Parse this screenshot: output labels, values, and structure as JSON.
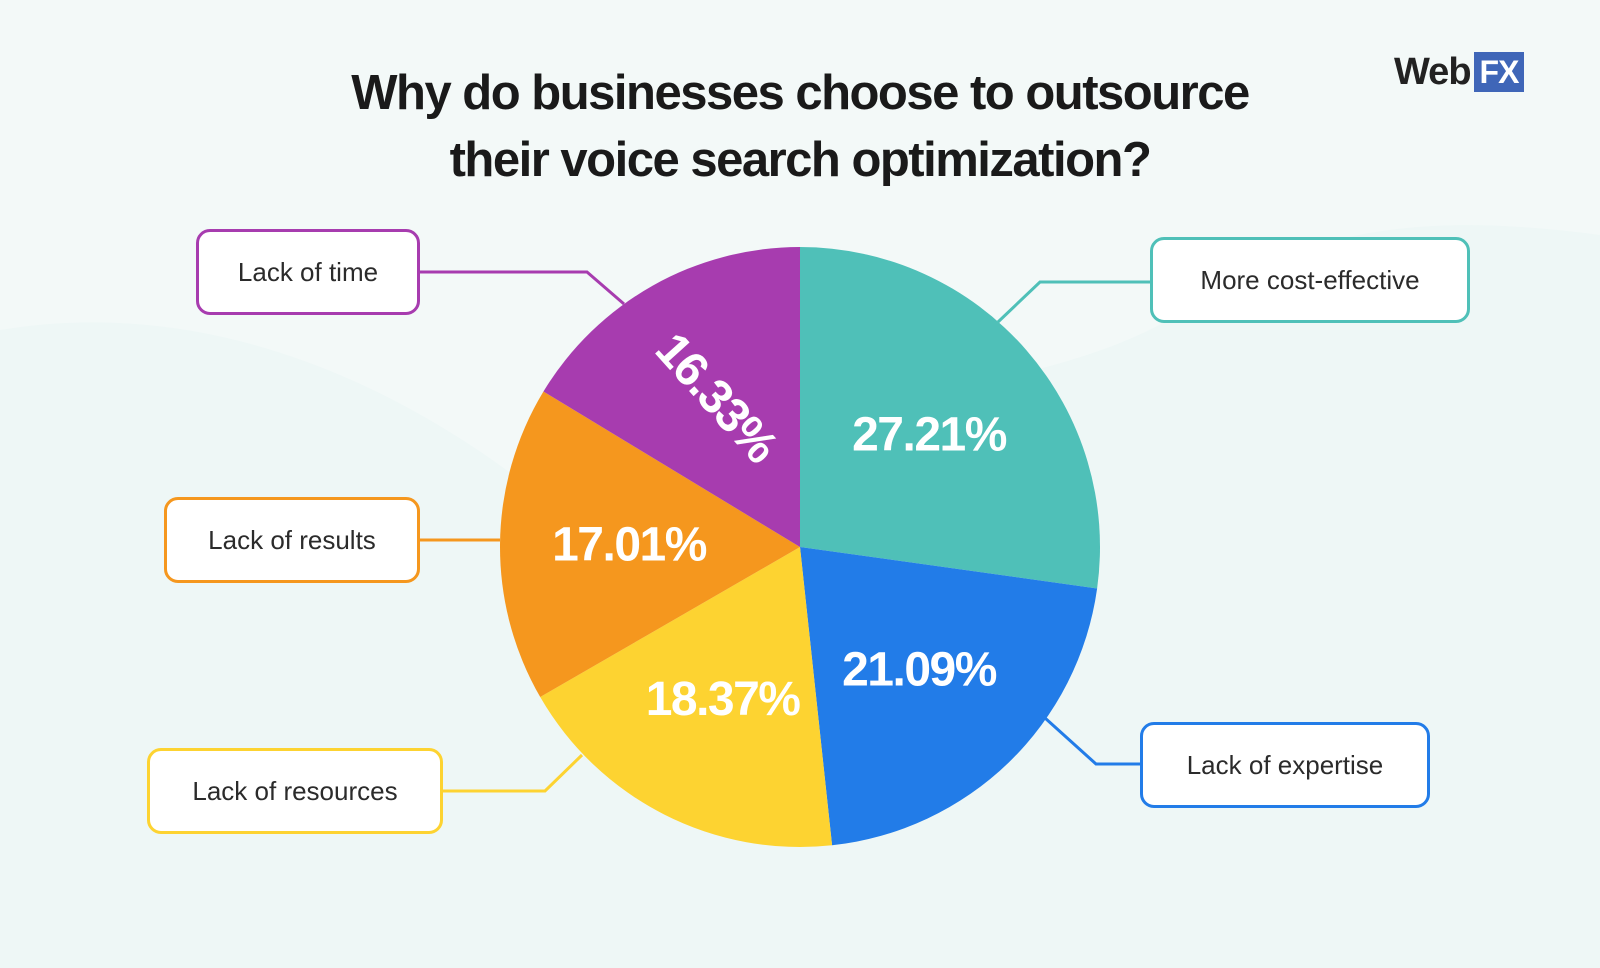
{
  "title_lines": [
    "Why do businesses choose to outsource",
    "their voice search optimization?"
  ],
  "brand": {
    "web": "Web",
    "fx": "FX"
  },
  "colors": {
    "background": "#f3f9f8",
    "teal": "#4fc0b8",
    "blue": "#227ce8",
    "yellow": "#fdd331",
    "orange": "#f5971e",
    "purple": "#a73caf",
    "brand_blue": "#3f66b8"
  },
  "chart_data": {
    "type": "pie",
    "title": "Why do businesses choose to outsource their voice search optimization?",
    "start_angle": "12 o'clock",
    "direction": "clockwise",
    "slices": [
      {
        "label": "More cost-effective",
        "value": 27.21,
        "value_label": "27.21%",
        "color": "#4fc0b8"
      },
      {
        "label": "Lack of expertise",
        "value": 21.09,
        "value_label": "21.09%",
        "color": "#227ce8"
      },
      {
        "label": "Lack of resources",
        "value": 18.37,
        "value_label": "18.37%",
        "color": "#fdd331"
      },
      {
        "label": "Lack of results",
        "value": 17.01,
        "value_label": "17.01%",
        "color": "#f5971e"
      },
      {
        "label": "Lack of time",
        "value": 16.33,
        "value_label": "16.33%",
        "color": "#a73caf"
      }
    ]
  }
}
